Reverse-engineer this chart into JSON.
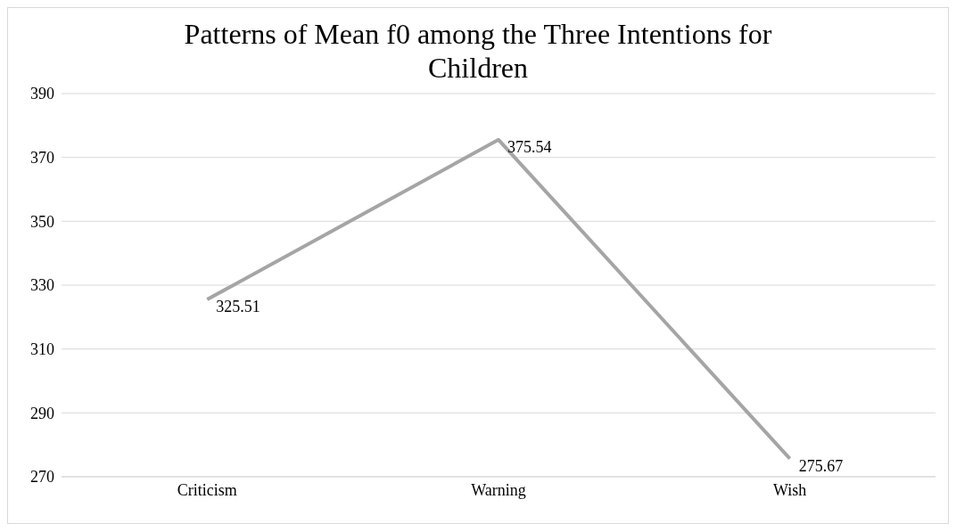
{
  "chart_data": {
    "type": "line",
    "title": "Patterns of Mean f0 among the Three Intentions for Children",
    "categories": [
      "Criticism",
      "Warning",
      "Wish"
    ],
    "series": [
      {
        "color": "#a5a5a5",
        "values": [
          325.51,
          375.54,
          275.67
        ]
      }
    ],
    "ylim": [
      270,
      390
    ],
    "yticks": [
      270,
      290,
      310,
      330,
      350,
      370,
      390
    ],
    "grid": "y",
    "legend": false,
    "marker": "none",
    "data_labels": true
  }
}
